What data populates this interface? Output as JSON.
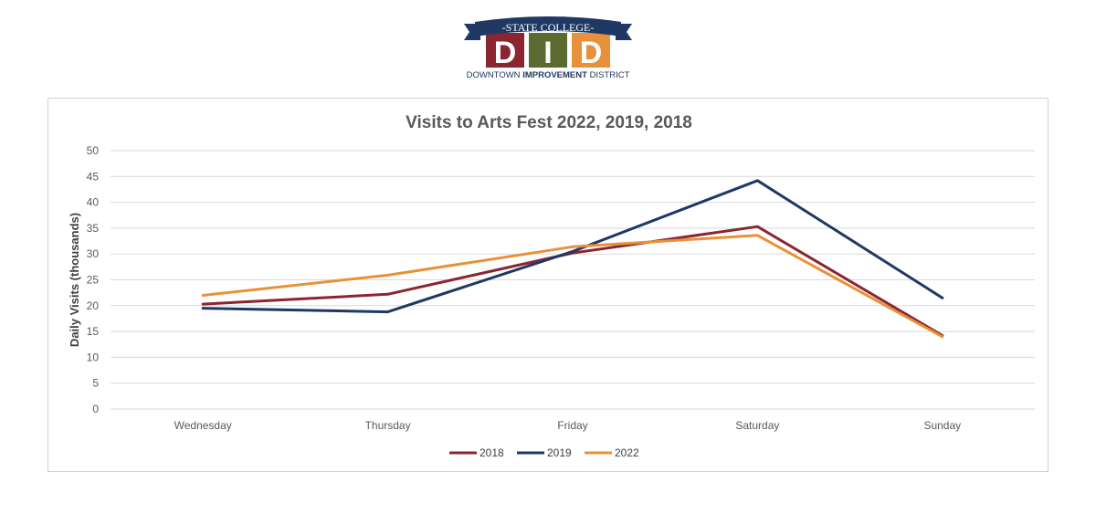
{
  "logo": {
    "banner_text": "-STATE COLLEGE-",
    "letters": [
      "D",
      "I",
      "D"
    ],
    "subtitle_part1": "DOWNTOWN",
    "subtitle_part2": "IMPROVEMENT",
    "subtitle_part3": "DISTRICT",
    "colors": {
      "navy": "#1f3864",
      "red": "#8b2631",
      "olive": "#5b6a31",
      "orange": "#e8913a"
    }
  },
  "chart_data": {
    "type": "line",
    "title": "Visits to Arts Fest 2022, 2019, 2018",
    "xlabel": "",
    "ylabel": "Daily Visits (thousands)",
    "categories": [
      "Wednesday",
      "Thursday",
      "Friday",
      "Saturday",
      "Sunday"
    ],
    "ylim": [
      0,
      50
    ],
    "yticks": [
      0,
      5,
      10,
      15,
      20,
      25,
      30,
      35,
      40,
      45,
      50
    ],
    "grid": true,
    "legend_position": "bottom",
    "series": [
      {
        "name": "2018",
        "color": "#8b2631",
        "values": [
          20.3,
          22.2,
          30.2,
          35.3,
          14.2
        ]
      },
      {
        "name": "2019",
        "color": "#1f3864",
        "values": [
          19.5,
          18.8,
          30.5,
          44.2,
          21.5
        ]
      },
      {
        "name": "2022",
        "color": "#e8913a",
        "values": [
          22.0,
          25.9,
          31.4,
          33.6,
          14.0
        ]
      }
    ]
  }
}
